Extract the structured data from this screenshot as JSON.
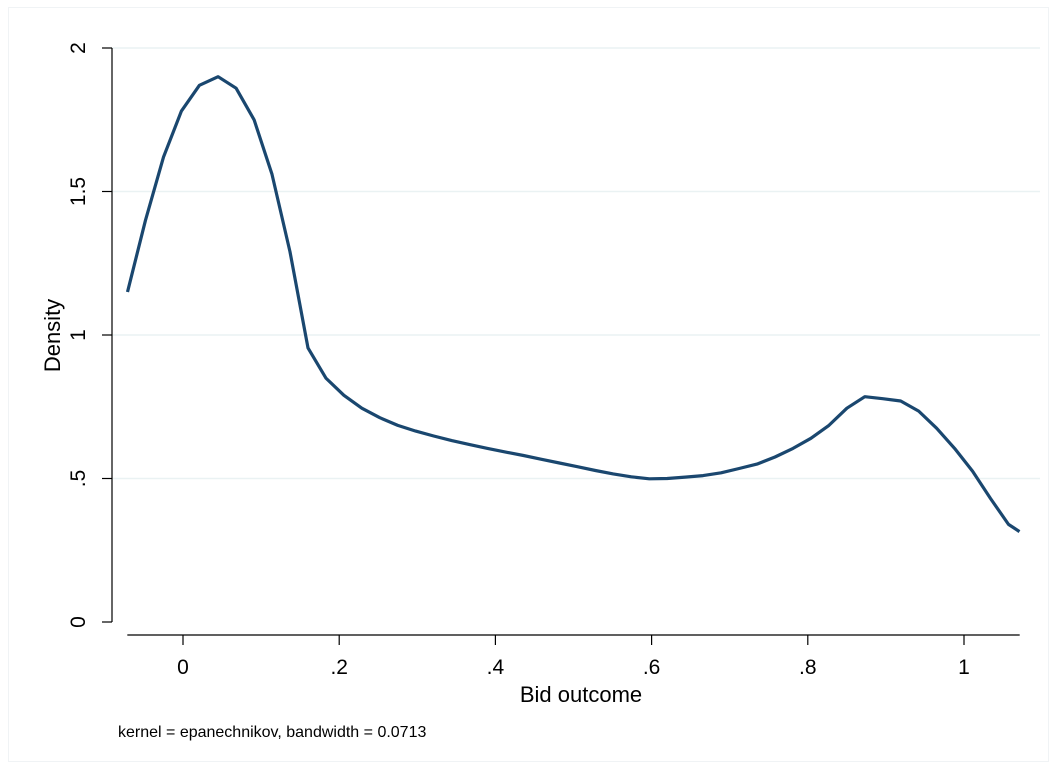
{
  "chart_data": {
    "type": "line",
    "xlabel": "Bid outcome",
    "ylabel": "Density",
    "note": "kernel = epanechnikov, bandwidth = 0.0713",
    "xlim": [
      -0.0713,
      1.0713
    ],
    "ylim": [
      0,
      2
    ],
    "x_ticks": [
      0,
      0.2,
      0.4,
      0.6,
      0.8,
      1
    ],
    "x_tick_labels": [
      "0",
      ".2",
      ".4",
      ".6",
      ".8",
      "1"
    ],
    "y_ticks": [
      0,
      0.5,
      1,
      1.5,
      2
    ],
    "y_tick_labels": [
      "0",
      ".5",
      "1",
      "1.5",
      "2"
    ],
    "grid": "horizontal",
    "line_color": "#1a476f",
    "grid_color": "#eaf2f3",
    "series": [
      {
        "x": [
          -0.071,
          -0.048,
          -0.025,
          -0.002,
          0.021,
          0.045,
          0.068,
          0.091,
          0.114,
          0.137,
          0.16,
          0.183,
          0.206,
          0.229,
          0.252,
          0.275,
          0.298,
          0.321,
          0.344,
          0.367,
          0.39,
          0.413,
          0.436,
          0.459,
          0.482,
          0.505,
          0.528,
          0.551,
          0.574,
          0.597,
          0.62,
          0.643,
          0.666,
          0.689,
          0.712,
          0.735,
          0.758,
          0.781,
          0.804,
          0.827,
          0.85,
          0.873,
          0.896,
          0.919,
          0.942,
          0.965,
          0.988,
          1.011,
          1.034,
          1.057,
          1.071
        ],
        "y": [
          1.15,
          1.4,
          1.62,
          1.78,
          1.87,
          1.9,
          1.86,
          1.75,
          1.56,
          1.29,
          0.955,
          0.85,
          0.79,
          0.745,
          0.712,
          0.685,
          0.665,
          0.648,
          0.632,
          0.618,
          0.605,
          0.592,
          0.58,
          0.567,
          0.554,
          0.541,
          0.528,
          0.516,
          0.506,
          0.499,
          0.5,
          0.505,
          0.51,
          0.52,
          0.535,
          0.55,
          0.575,
          0.605,
          0.64,
          0.685,
          0.745,
          0.785,
          0.778,
          0.77,
          0.735,
          0.675,
          0.605,
          0.525,
          0.43,
          0.34,
          0.315
        ]
      }
    ]
  }
}
